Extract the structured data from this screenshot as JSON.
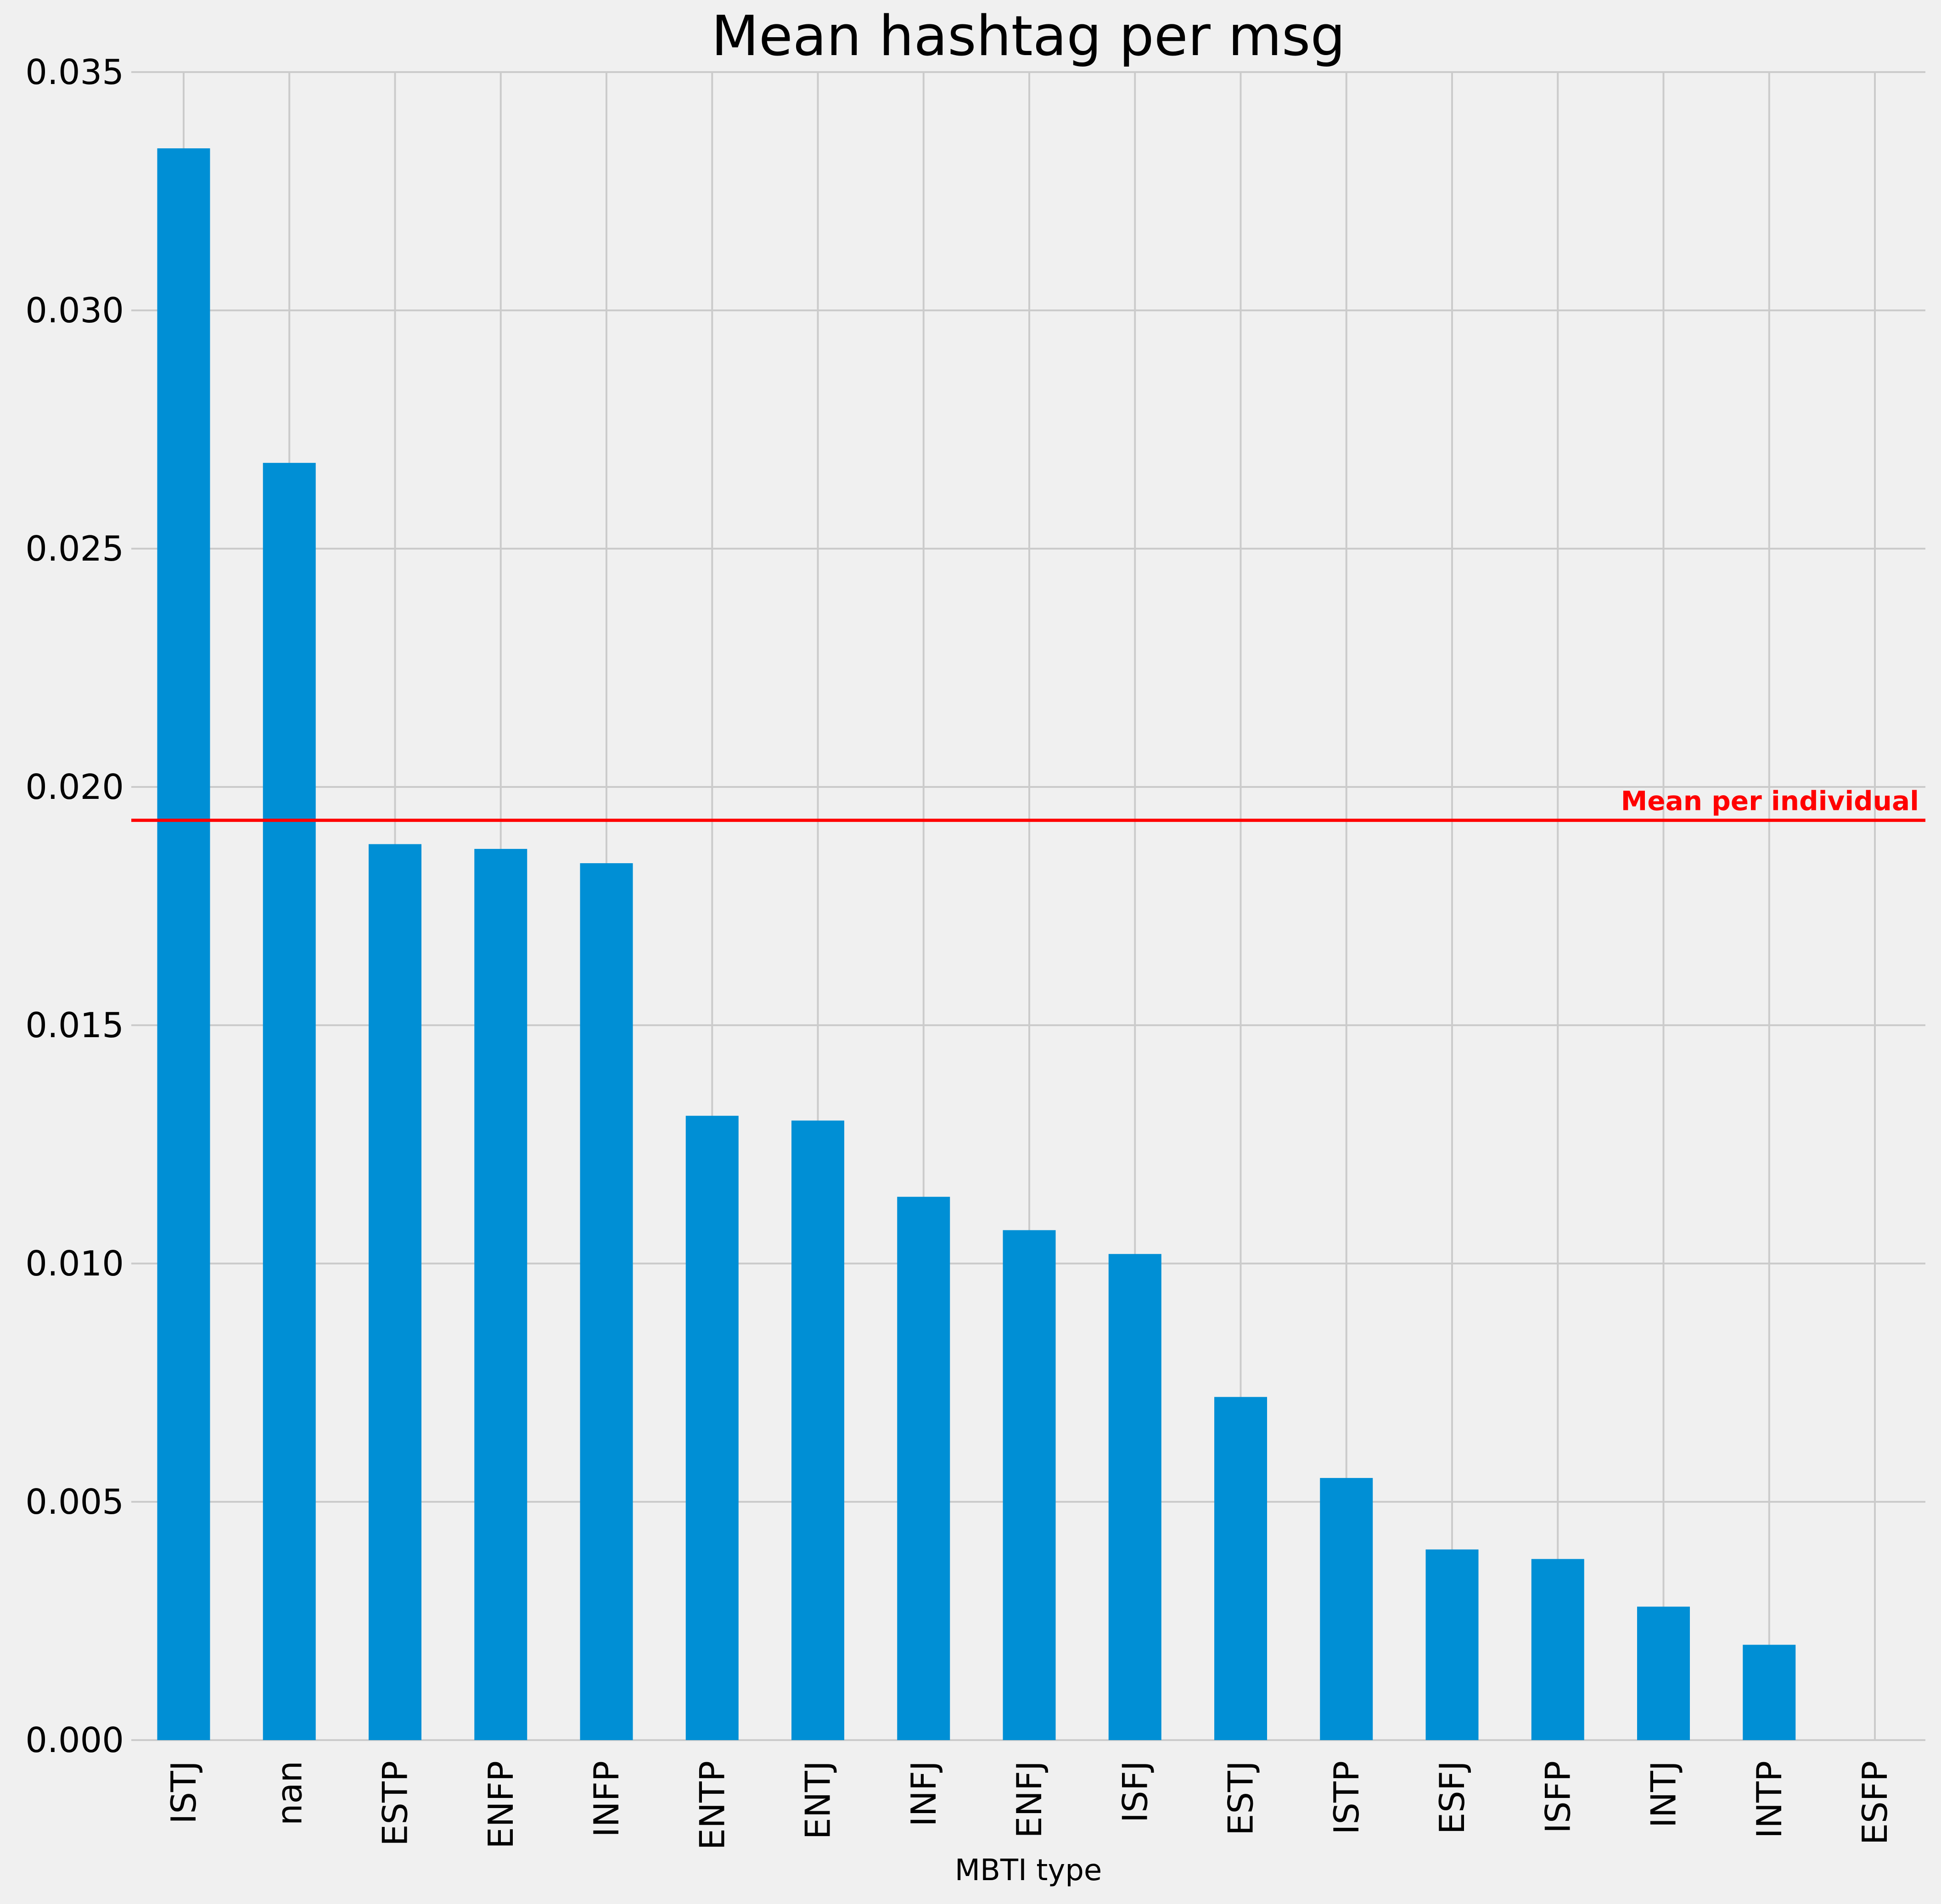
{
  "chart_data": {
    "type": "bar",
    "title": "Mean hashtag per msg",
    "xlabel": "MBTI type",
    "ylabel": "",
    "ylim": [
      0,
      0.035
    ],
    "yticks": [
      "0.000",
      "0.005",
      "0.010",
      "0.015",
      "0.020",
      "0.025",
      "0.030",
      "0.035"
    ],
    "yticks_values": [
      0,
      0.005,
      0.01,
      0.015,
      0.02,
      0.025,
      0.03,
      0.035
    ],
    "categories": [
      "ISTJ",
      "nan",
      "ESTP",
      "ENFP",
      "INFP",
      "ENTP",
      "ENTJ",
      "INFJ",
      "ENFJ",
      "ISFJ",
      "ESTJ",
      "ISTP",
      "ESFJ",
      "ISFP",
      "INTJ",
      "INTP",
      "ESFP"
    ],
    "values": [
      0.0334,
      0.0268,
      0.0188,
      0.0187,
      0.0184,
      0.0131,
      0.013,
      0.0114,
      0.0107,
      0.0102,
      0.0072,
      0.0055,
      0.004,
      0.0038,
      0.0028,
      0.002,
      0.0
    ],
    "grid": true,
    "bar_color": "#008fd5",
    "reference_line": {
      "value": 0.0193,
      "label": "Mean per individual",
      "color": "#ff0000"
    }
  }
}
